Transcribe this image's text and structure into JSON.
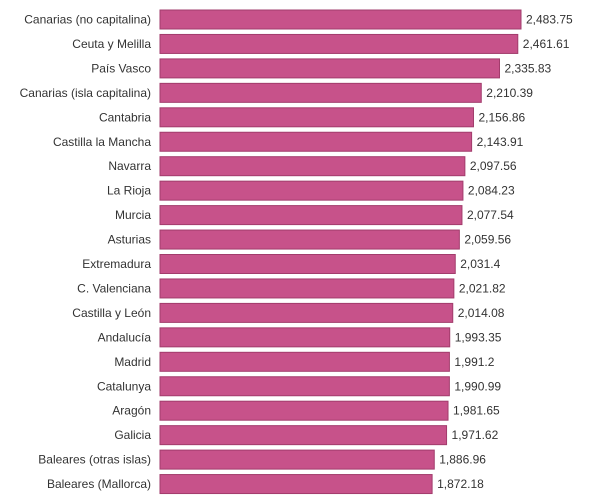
{
  "chart_data": {
    "type": "bar",
    "orientation": "horizontal",
    "categories": [
      "Canarias (no capitalina)",
      "Ceuta y Melilla",
      "País Vasco",
      "Canarias (isla capitalina)",
      "Cantabria",
      "Castilla la Mancha",
      "Navarra",
      "La Rioja",
      "Murcia",
      "Asturias",
      "Extremadura",
      "C. Valenciana",
      "Castilla y León",
      "Andalucía",
      "Madrid",
      "Catalunya",
      "Aragón",
      "Galicia",
      "Baleares (otras islas)",
      "Baleares (Mallorca)"
    ],
    "values": [
      2483.75,
      2461.61,
      2335.83,
      2210.39,
      2156.86,
      2143.91,
      2097.56,
      2084.23,
      2077.54,
      2059.56,
      2031.4,
      2021.82,
      2014.08,
      1993.35,
      1991.2,
      1990.99,
      1981.65,
      1971.62,
      1886.96,
      1872.18
    ],
    "value_labels": [
      "2,483.75",
      "2,461.61",
      "2,335.83",
      "2,210.39",
      "2,156.86",
      "2,143.91",
      "2,097.56",
      "2,084.23",
      "2,077.54",
      "2,059.56",
      "2,031.4",
      "2,021.82",
      "2,014.08",
      "1,993.35",
      "1,991.2",
      "1,990.99",
      "1,981.65",
      "1,971.62",
      "1,886.96",
      "1,872.18"
    ],
    "title": "",
    "xlabel": "",
    "ylabel": "",
    "xlim": [
      0,
      2483.75
    ],
    "grid": false,
    "legend": "none",
    "bar_color": "#c7528a",
    "bar_border_color": "#a23c6c"
  }
}
